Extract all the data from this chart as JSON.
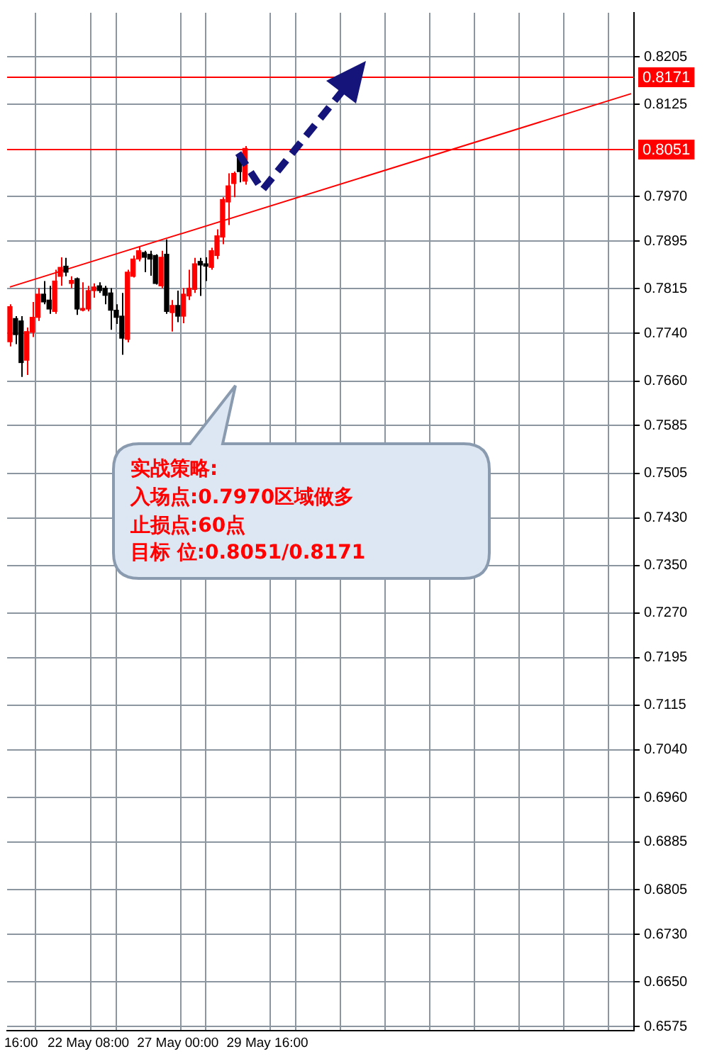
{
  "chart_data": {
    "type": "candlestick",
    "categories": [
      null,
      null,
      "16:00",
      null,
      null,
      null,
      null,
      null,
      null,
      null,
      null,
      null,
      null,
      null,
      "22 May 08:00",
      null,
      null,
      null,
      null,
      null,
      null,
      null,
      null,
      null,
      null,
      null,
      null,
      null,
      null,
      null,
      "27 May 00:00",
      null,
      null,
      null,
      null,
      null,
      null,
      null,
      null,
      null,
      null,
      null,
      null,
      null,
      null,
      null,
      "29 May 16:00",
      null,
      null,
      null,
      null,
      null,
      null,
      null,
      null,
      null,
      null,
      null,
      null,
      null,
      null,
      null,
      null,
      null,
      null,
      null,
      null,
      null,
      null,
      null,
      null,
      null,
      null,
      null,
      null,
      null,
      null,
      null,
      null,
      null,
      null,
      null,
      null,
      null,
      null,
      null,
      null,
      null,
      null,
      null,
      null,
      null,
      null,
      null,
      null,
      null,
      null,
      null,
      null,
      null,
      null,
      null,
      null,
      null,
      null,
      null,
      null,
      null,
      null,
      null,
      null,
      null
    ],
    "ohlc": [
      [
        0.7726,
        0.7789,
        0.7718,
        0.7785
      ],
      [
        0.7765,
        0.7769,
        0.7722,
        0.7738
      ],
      [
        0.7761,
        0.7769,
        0.7667,
        0.7691
      ],
      [
        0.7695,
        0.775,
        0.767,
        0.7743
      ],
      [
        0.7742,
        0.7793,
        0.7734,
        0.7767
      ],
      [
        0.7767,
        0.7816,
        0.7761,
        0.7806
      ],
      [
        0.7806,
        0.7828,
        0.7789,
        0.7793
      ],
      [
        0.7796,
        0.782,
        0.7773,
        0.7781
      ],
      [
        0.7777,
        0.7847,
        0.7773,
        0.7828
      ],
      [
        0.7836,
        0.7868,
        0.782,
        0.7851
      ],
      [
        0.7853,
        0.7867,
        0.7836,
        0.7843
      ],
      [
        0.7824,
        0.7836,
        0.7816,
        0.7829
      ],
      [
        0.7832,
        0.7834,
        0.7771,
        0.7781
      ],
      [
        0.7779,
        0.7826,
        0.7777,
        0.7782
      ],
      [
        0.7781,
        0.782,
        0.7777,
        0.7812
      ],
      [
        0.7812,
        0.7824,
        0.78,
        0.7818
      ],
      [
        0.782,
        0.7826,
        0.7808,
        0.7812
      ],
      [
        0.7816,
        0.782,
        0.7789,
        0.7804
      ],
      [
        0.7808,
        0.7816,
        0.7746,
        0.7779
      ],
      [
        0.7779,
        0.7789,
        0.7756,
        0.7767
      ],
      [
        0.7769,
        0.7808,
        0.7704,
        0.7732
      ],
      [
        0.773,
        0.7847,
        0.7725,
        0.7843
      ],
      [
        0.7836,
        0.7871,
        0.7834,
        0.7865
      ],
      [
        0.7865,
        0.7886,
        0.7861,
        0.7879
      ],
      [
        0.7876,
        0.7879,
        0.7843,
        0.7868
      ],
      [
        0.7873,
        0.7879,
        0.7837,
        0.7865
      ],
      [
        0.7871,
        0.7873,
        0.7822,
        0.7824
      ],
      [
        0.782,
        0.7879,
        0.7816,
        0.7868
      ],
      [
        0.7873,
        0.7898,
        0.7773,
        0.7777
      ],
      [
        0.7775,
        0.7796,
        0.7743,
        0.7787
      ],
      [
        0.7787,
        0.7812,
        0.7759,
        0.7769
      ],
      [
        0.7769,
        0.7816,
        0.7757,
        0.7806
      ],
      [
        0.7803,
        0.7847,
        0.7796,
        0.7816
      ],
      [
        0.7814,
        0.7867,
        0.7808,
        0.7857
      ],
      [
        0.7861,
        0.7867,
        0.7803,
        0.7855
      ],
      [
        0.7857,
        0.7868,
        0.7828,
        0.7853
      ],
      [
        0.7851,
        0.7884,
        0.7847,
        0.7879
      ],
      [
        0.7871,
        0.7915,
        0.7865,
        0.7904
      ],
      [
        0.7902,
        0.7969,
        0.789,
        0.7965
      ],
      [
        0.7961,
        0.8009,
        0.7922,
        0.7988
      ],
      [
        0.7992,
        0.8012,
        0.7969,
        0.8009
      ],
      [
        0.8035,
        0.8039,
        0.7994,
        0.8012
      ],
      [
        0.7996,
        0.8055,
        0.799,
        0.8051
      ],
      null,
      null,
      null,
      null,
      null,
      null,
      null,
      null,
      null,
      null,
      null,
      null,
      null,
      null,
      null,
      null,
      null,
      null,
      null,
      null,
      null,
      null,
      null,
      null,
      null,
      null,
      null,
      null,
      null,
      null,
      null,
      null,
      null,
      null,
      null,
      null,
      null,
      null,
      null,
      null,
      null,
      null,
      null,
      null,
      null,
      null,
      null,
      null,
      null,
      null,
      null,
      null,
      null,
      null,
      null,
      null,
      null,
      null,
      null,
      null,
      null,
      null,
      null,
      null,
      null,
      null,
      null,
      null,
      null
    ],
    "colors": [
      "#ff0000",
      "#000000",
      "#000000",
      "#ff0000",
      "#ff0000",
      "#ff0000",
      "#000000",
      "#000000",
      "#ff0000",
      "#ff0000",
      "#000000",
      "#ff0000",
      "#000000",
      "#ff0000",
      "#ff0000",
      "#ff0000",
      "#000000",
      "#000000",
      "#000000",
      "#000000",
      "#000000",
      "#ff0000",
      "#ff0000",
      "#ff0000",
      "#000000",
      "#000000",
      "#000000",
      "#ff0000",
      "#000000",
      "#ff0000",
      "#000000",
      "#ff0000",
      "#ff0000",
      "#ff0000",
      "#000000",
      "#000000",
      "#ff0000",
      "#ff0000",
      "#ff0000",
      "#ff0000",
      "#ff0000",
      "#000000",
      "#ff0000",
      null,
      null,
      null,
      null,
      null,
      null,
      null,
      null,
      null,
      null,
      null,
      null,
      null,
      null,
      null,
      null,
      null,
      null,
      null,
      null,
      null,
      null,
      null,
      null,
      null,
      null,
      null,
      null,
      null,
      null,
      null,
      null,
      null,
      null,
      null,
      null,
      null,
      null,
      null,
      null,
      null,
      null,
      null,
      null,
      null,
      null,
      null,
      null,
      null,
      null,
      null,
      null,
      null,
      null,
      null,
      null,
      null,
      null,
      null,
      null,
      null,
      null,
      null,
      null,
      null,
      null,
      null,
      null,
      null
    ],
    "series": [
      {
        "type": "line",
        "color": "#ff0000",
        "values": [
          0.7818,
          null,
          null,
          null,
          null,
          null,
          null,
          null,
          null,
          null,
          null,
          null,
          null,
          null,
          null,
          null,
          null,
          null,
          null,
          null,
          null,
          null,
          null,
          null,
          null,
          null,
          null,
          null,
          null,
          null,
          null,
          null,
          null,
          null,
          null,
          null,
          null,
          null,
          null,
          null,
          null,
          null,
          null,
          null,
          null,
          null,
          null,
          null,
          null,
          null,
          null,
          null,
          null,
          null,
          null,
          null,
          null,
          null,
          null,
          null,
          null,
          null,
          null,
          null,
          null,
          null,
          null,
          null,
          null,
          null,
          null,
          null,
          null,
          null,
          null,
          null,
          null,
          null,
          null,
          null,
          null,
          null,
          null,
          null,
          null,
          null,
          null,
          null,
          null,
          null,
          null,
          null,
          null,
          null,
          null,
          null,
          null,
          null,
          null,
          null,
          null,
          null,
          null,
          null,
          null,
          null,
          null,
          null,
          null,
          null,
          null,
          0.8143
        ]
      }
    ],
    "ylim": [
      0.6568,
      0.8279
    ],
    "yticks": [
      0.8205,
      0.8125,
      {
        "value": 0.797,
        "label": "0.7970"
      },
      0.7895,
      0.7815,
      {
        "value": 0.774,
        "label": "0.7740"
      },
      {
        "value": 0.766,
        "label": "0.7660"
      },
      0.7585,
      0.7505,
      {
        "value": 0.743,
        "label": "0.7430"
      },
      {
        "value": 0.735,
        "label": "0.7350"
      },
      {
        "value": 0.727,
        "label": "0.7270"
      },
      0.7195,
      0.7115,
      {
        "value": 0.704,
        "label": "0.7040"
      },
      {
        "value": 0.696,
        "label": "0.6960"
      },
      0.6885,
      0.6805,
      {
        "value": 0.673,
        "label": "0.6730"
      },
      {
        "value": 0.665,
        "label": "0.6650"
      },
      0.6575
    ],
    "ref_lines": [
      {
        "axis": "y",
        "value": 0.8171,
        "label": "0.8171",
        "color": "#ff0000"
      },
      {
        "axis": "y",
        "value": 0.8051,
        "label": "0.8051",
        "color": "#ff0000"
      }
    ],
    "grid": true,
    "annotations": [
      "实战策略:",
      "入场点:0.7970区域做多",
      "止损点:60点",
      "目标 位:0.8051/0.8171"
    ]
  }
}
